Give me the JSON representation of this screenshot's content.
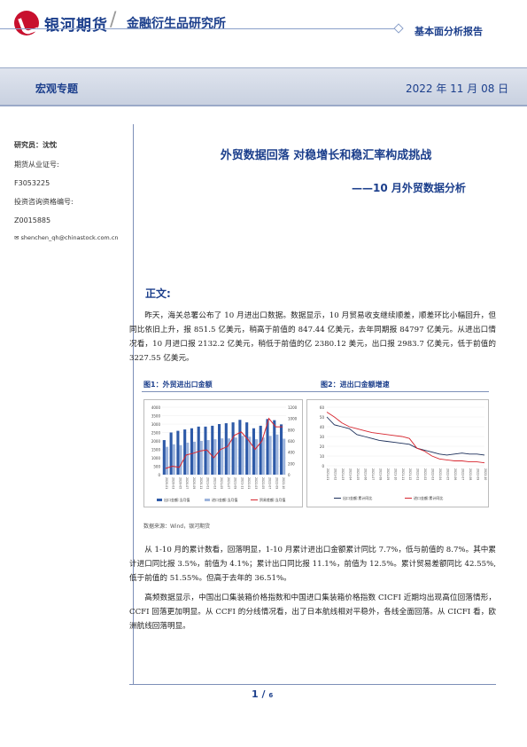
{
  "header": {
    "logo_text": "银河期货",
    "slash": "/",
    "department": "金融衍生品研究所",
    "report_type": "基本面分析报告"
  },
  "band": {
    "category": "宏观专题",
    "date": "2022 年 11 月 08 日"
  },
  "sidebar": {
    "researcher": "研究员：沈忱",
    "license_label": "期货从业证号:",
    "license_no": "F3053225",
    "advisory_label": "投资咨询资格编号:",
    "advisory_no": "Z0015885",
    "email": "shenchen_qh@chinastock.com.cn"
  },
  "title": "外贸数据回落 对稳增长和稳汇率构成挑战",
  "subtitle": "——10 月外贸数据分析",
  "section_heading": "正文:",
  "paragraphs": {
    "p1": "昨天，海关总署公布了 10 月进出口数据。数据显示，10 月贸易收支继续顺差，顺差环比小幅回升，但同比依旧上升，报 851.5 亿美元，稍高于前值的 847.44 亿美元，去年同期报 84797 亿美元。从进出口情况看，10 月进口报 2132.2 亿美元，稍低于前值的亿 2380.12 美元，出口报 2983.7 亿美元，低于前值的 3227.55 亿美元。",
    "p2": "从 1-10 月的累计数看，回落明显，1-10 月累计进出口金额累计同比 7.7%，低与前值的 8.7%。其中累计进口同比报 3.5%，前值为 4.1%；累计出口同比报 11.1%，前值为 12.5%。累计贸易差额同比 42.55%,低于前值的 51.55%。但高于去年的 36.51%。",
    "p3": "高频数据显示，中国出口集装箱价格指数和中国进口集装箱价格指数 CICFI 近期均出现高位回落情形，CCFI 回落更加明显。从 CCFI 的分线情况看，出了日本航线相对平稳外，各线全面回落。从 CICFI 看，欧洲航线回落明显。"
  },
  "figures": {
    "fig1_title": "图1：外贸进出口金额",
    "fig2_title": "图2：进出口金额增速",
    "source": "数据来源：Wind，银河期货"
  },
  "footer": {
    "page": "1",
    "sep": " / ",
    "total": "6"
  },
  "colors": {
    "brand_blue": "#1c3f8c",
    "brand_red": "#c8102e",
    "export_bar": "#2e5aa8",
    "import_bar": "#9db4dc",
    "balance_line": "#d7262f"
  },
  "chart_data": [
    {
      "type": "bar",
      "title": "图1：外贸进出口金额",
      "categories": [
        "2020-01",
        "2020-03",
        "2020-05",
        "2020-07",
        "2020-09",
        "2020-11",
        "2021-01",
        "2021-03",
        "2021-05",
        "2021-07",
        "2021-09",
        "2021-11",
        "2022-01",
        "2022-03",
        "2022-05",
        "2022-07",
        "2022-09",
        "2022-10"
      ],
      "series": [
        {
          "name": "出口金额:当月值",
          "axis": "left",
          "values": [
            2050,
            2500,
            2600,
            2680,
            2750,
            2850,
            2850,
            2900,
            3000,
            3050,
            3100,
            3250,
            3100,
            2750,
            2900,
            3300,
            3230,
            2980
          ]
        },
        {
          "name": "进口金额:当月值",
          "axis": "left",
          "values": [
            1650,
            1800,
            1750,
            1900,
            1950,
            2000,
            2050,
            2100,
            2150,
            2150,
            2200,
            2300,
            2250,
            2100,
            2200,
            2300,
            2380,
            2130
          ]
        },
        {
          "name": "贸易差额:当月值",
          "axis": "right",
          "type": "line",
          "values": [
            110,
            150,
            130,
            350,
            380,
            420,
            440,
            300,
            450,
            500,
            700,
            760,
            620,
            450,
            600,
            1000,
            850,
            850
          ]
        }
      ],
      "left_ticks": [
        "4000",
        "3500",
        "3000",
        "2500",
        "2000",
        "1500",
        "1000",
        "500",
        "0"
      ],
      "right_ticks": [
        "1200",
        "1000",
        "800",
        "600",
        "400",
        "200",
        "0"
      ],
      "ylim_left": [
        0,
        4000
      ],
      "ylim_right": [
        0,
        1200
      ]
    },
    {
      "type": "line",
      "title": "图2：进出口金额增速",
      "categories": [
        "2021-01",
        "2021-02",
        "2021-03",
        "2021-04",
        "2021-05",
        "2021-06",
        "2021-07",
        "2021-08",
        "2021-09",
        "2021-10",
        "2021-11",
        "2021-12",
        "2022-01",
        "2022-02",
        "2022-03",
        "2022-04",
        "2022-05",
        "2022-06",
        "2022-07",
        "2022-08",
        "2022-09",
        "2022-10"
      ],
      "series": [
        {
          "name": "出口金额:累计同比",
          "values": [
            50,
            42,
            40,
            38,
            32,
            30,
            28,
            26,
            25,
            24,
            23,
            22,
            18,
            16,
            14,
            12,
            11,
            12,
            13,
            12,
            12,
            11
          ]
        },
        {
          "name": "进口金额:累计同比",
          "values": [
            55,
            50,
            44,
            40,
            38,
            36,
            34,
            33,
            32,
            31,
            30,
            28,
            18,
            15,
            10,
            7,
            6,
            5,
            5,
            4,
            4,
            3
          ]
        }
      ],
      "y_ticks": [
        "60",
        "50",
        "40",
        "30",
        "20",
        "10",
        "0"
      ],
      "ylim": [
        0,
        60
      ]
    }
  ]
}
